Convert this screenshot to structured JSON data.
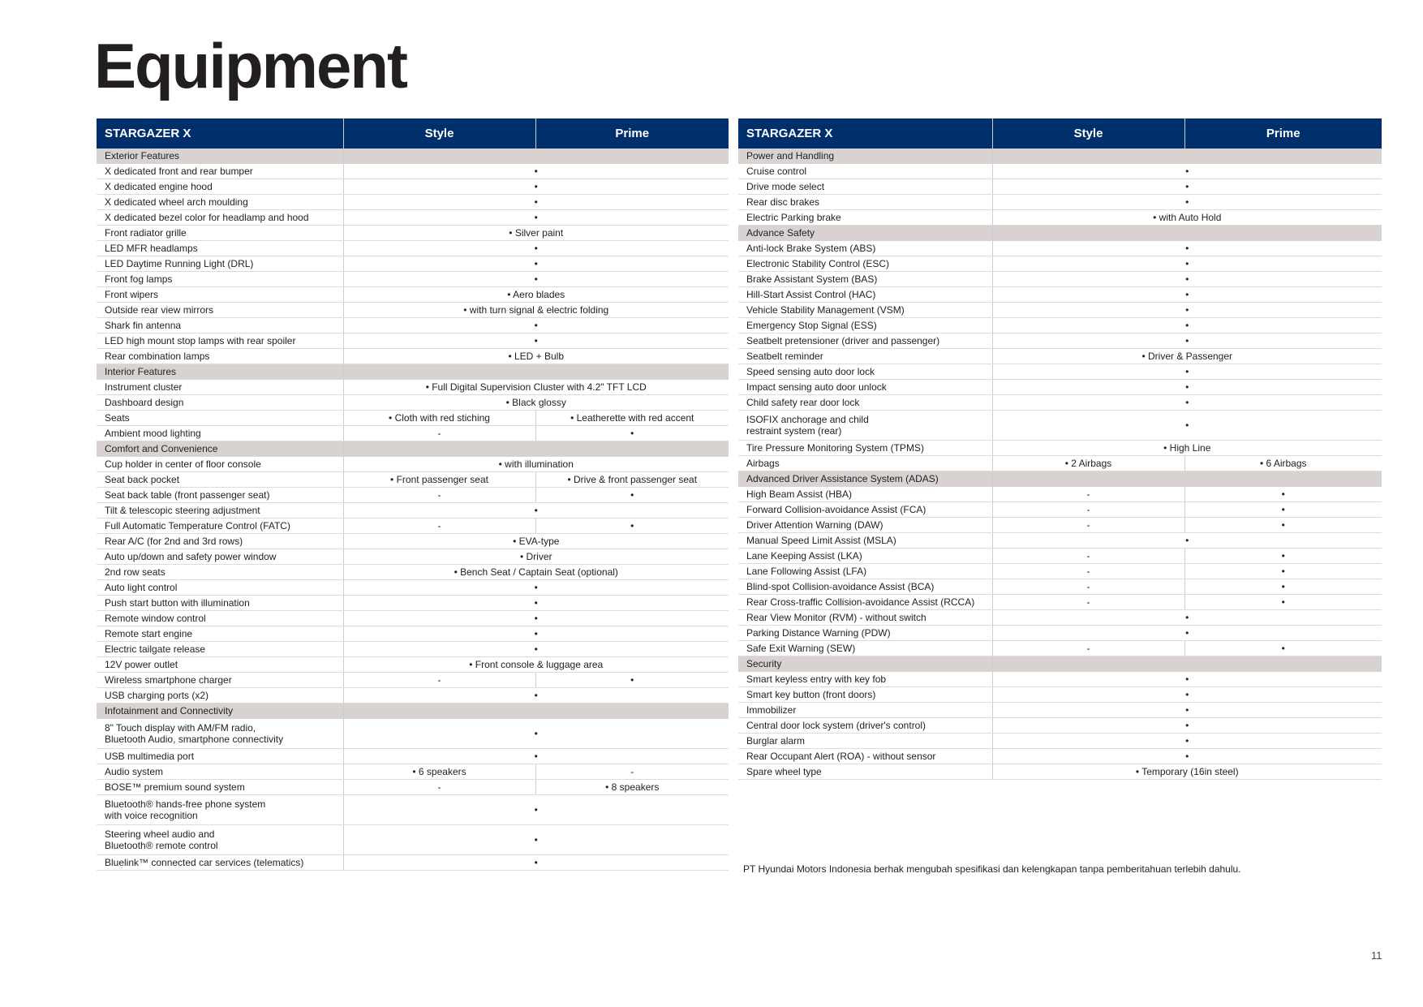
{
  "title": "Equipment",
  "footnote": "PT Hyundai Motors Indonesia berhak mengubah spesifikasi dan kelengkapan tanpa pemberitahuan terlebih dahulu.",
  "page_number": "11",
  "colors": {
    "header_bg": "#00306b",
    "section_bg": "#d8d3d0"
  },
  "tables": [
    {
      "headers": [
        "STARGAZER X",
        "Style",
        "Prime"
      ],
      "rows": [
        {
          "section": "Exterior Features"
        },
        {
          "label": "X dedicated front and rear bumper",
          "all": "•"
        },
        {
          "label": "X dedicated engine hood",
          "all": "•"
        },
        {
          "label": "X dedicated wheel arch moulding",
          "all": "•"
        },
        {
          "label": "X dedicated bezel color for headlamp and hood",
          "all": "•"
        },
        {
          "label": "Front radiator grille",
          "all": "• Silver paint"
        },
        {
          "label": "LED MFR headlamps",
          "all": "•"
        },
        {
          "label": "LED Daytime Running Light (DRL)",
          "all": "•"
        },
        {
          "label": "Front fog lamps",
          "all": "•"
        },
        {
          "label": "Front wipers",
          "all": "• Aero blades"
        },
        {
          "label": "Outside rear view mirrors",
          "all": "• with turn signal & electric folding"
        },
        {
          "label": "Shark fin antenna",
          "all": "•"
        },
        {
          "label": "LED high mount stop lamps with rear spoiler",
          "all": "•"
        },
        {
          "label": "Rear combination lamps",
          "all": "• LED + Bulb"
        },
        {
          "section": "Interior Features"
        },
        {
          "label": "Instrument cluster",
          "all": "• Full Digital Supervision Cluster with 4.2\" TFT LCD"
        },
        {
          "label": "Dashboard design",
          "all": "• Black glossy"
        },
        {
          "label": "Seats",
          "style": "• Cloth with red stiching",
          "prime": "• Leatherette with red accent"
        },
        {
          "label": "Ambient mood lighting",
          "style": "-",
          "prime": "•"
        },
        {
          "section": "Comfort and Convenience"
        },
        {
          "label": "Cup holder in center of floor console",
          "all": "• with illumination"
        },
        {
          "label": "Seat back pocket",
          "style": "• Front passenger seat",
          "prime": "• Drive & front passenger seat"
        },
        {
          "label": "Seat back table (front passenger seat)",
          "style": "-",
          "prime": "•"
        },
        {
          "label": "Tilt & telescopic steering adjustment",
          "all": "•"
        },
        {
          "label": "Full Automatic Temperature Control (FATC)",
          "style": "-",
          "prime": "•"
        },
        {
          "label": "Rear A/C (for 2nd and 3rd rows)",
          "all": "• EVA-type"
        },
        {
          "label": "Auto up/down and safety power window",
          "all": "• Driver"
        },
        {
          "label": "2nd row seats",
          "all": "• Bench Seat / Captain Seat (optional)"
        },
        {
          "label": "Auto light control",
          "all": "•"
        },
        {
          "label": "Push start button with illumination",
          "all": "•"
        },
        {
          "label": "Remote window control",
          "all": "•"
        },
        {
          "label": "Remote start engine",
          "all": "•"
        },
        {
          "label": "Electric tailgate release",
          "all": "•"
        },
        {
          "label": "12V power outlet",
          "all": "• Front console & luggage area"
        },
        {
          "label": "Wireless smartphone charger",
          "style": "-",
          "prime": "•"
        },
        {
          "label": "USB charging ports (x2)",
          "all": "•"
        },
        {
          "section": "Infotainment and Connectivity"
        },
        {
          "label": "8\" Touch display with AM/FM radio,",
          "label2": "Bluetooth Audio, smartphone connectivity",
          "all": "•"
        },
        {
          "label": "USB multimedia port",
          "all": "•"
        },
        {
          "label": "Audio system",
          "style": "• 6 speakers",
          "prime": "-"
        },
        {
          "label": "BOSE™ premium sound system",
          "style": "-",
          "prime": "• 8 speakers"
        },
        {
          "label": "Bluetooth® hands-free phone system",
          "label2": "with voice recognition",
          "all": "•"
        },
        {
          "label": "Steering wheel audio and",
          "label2": "Bluetooth® remote control",
          "all": "•"
        },
        {
          "label": "Bluelink™ connected car services (telematics)",
          "all": "•"
        }
      ]
    },
    {
      "headers": [
        "STARGAZER X",
        "Style",
        "Prime"
      ],
      "rows": [
        {
          "section": "Power and Handling"
        },
        {
          "label": "Cruise control",
          "all": "•"
        },
        {
          "label": "Drive mode select",
          "all": "•"
        },
        {
          "label": "Rear disc brakes",
          "all": "•"
        },
        {
          "label": "Electric Parking brake",
          "all": "• with Auto Hold"
        },
        {
          "section": "Advance Safety"
        },
        {
          "label": "Anti-lock Brake System (ABS)",
          "all": "•"
        },
        {
          "label": "Electronic Stability Control (ESC)",
          "all": "•"
        },
        {
          "label": "Brake Assistant System (BAS)",
          "all": "•"
        },
        {
          "label": "Hill-Start Assist Control (HAC)",
          "all": "•"
        },
        {
          "label": "Vehicle Stability Management (VSM)",
          "all": "•"
        },
        {
          "label": "Emergency Stop Signal (ESS)",
          "all": "•"
        },
        {
          "label": "Seatbelt pretensioner (driver and passenger)",
          "all": "•"
        },
        {
          "label": "Seatbelt reminder",
          "all": "• Driver & Passenger"
        },
        {
          "label": "Speed sensing auto door lock",
          "all": "•"
        },
        {
          "label": "Impact sensing auto door unlock",
          "all": "•"
        },
        {
          "label": "Child safety rear door lock",
          "all": "•"
        },
        {
          "label": "ISOFIX anchorage and child",
          "label2": "restraint system (rear)",
          "all": "•"
        },
        {
          "label": "Tire Pressure Monitoring System (TPMS)",
          "all": "• High Line"
        },
        {
          "label": "Airbags",
          "style": "• 2 Airbags",
          "prime": "• 6 Airbags"
        },
        {
          "section": "Advanced Driver Assistance System (ADAS)"
        },
        {
          "label": "High Beam Assist (HBA)",
          "style": "-",
          "prime": "•"
        },
        {
          "label": "Forward Collision-avoidance Assist (FCA)",
          "style": "-",
          "prime": "•"
        },
        {
          "label": "Driver Attention Warning (DAW)",
          "style": "-",
          "prime": "•"
        },
        {
          "label": "Manual Speed Limit Assist (MSLA)",
          "all": "•"
        },
        {
          "label": "Lane Keeping Assist (LKA)",
          "style": "-",
          "prime": "•"
        },
        {
          "label": "Lane Following Assist (LFA)",
          "style": "-",
          "prime": "•"
        },
        {
          "label": "Blind-spot Collision-avoidance Assist (BCA)",
          "style": "-",
          "prime": "•"
        },
        {
          "label": "Rear Cross-traffic Collision-avoidance Assist (RCCA)",
          "style": "-",
          "prime": "•"
        },
        {
          "label": "Rear View Monitor (RVM) - without switch",
          "all": "•"
        },
        {
          "label": "Parking Distance Warning (PDW)",
          "all": "•"
        },
        {
          "label": "Safe Exit Warning (SEW)",
          "style": "-",
          "prime": "•"
        },
        {
          "section": "Security"
        },
        {
          "label": "Smart keyless entry with key fob",
          "all": "•"
        },
        {
          "label": "Smart key button (front doors)",
          "all": "•"
        },
        {
          "label": "Immobilizer",
          "all": "•"
        },
        {
          "label": "Central door lock system (driver's control)",
          "all": "•"
        },
        {
          "label": "Burglar alarm",
          "all": "•"
        },
        {
          "label": "Rear Occupant Alert (ROA) - without sensor",
          "all": "•"
        },
        {
          "label": "Spare wheel type",
          "all": "• Temporary (16in steel)"
        }
      ]
    }
  ]
}
